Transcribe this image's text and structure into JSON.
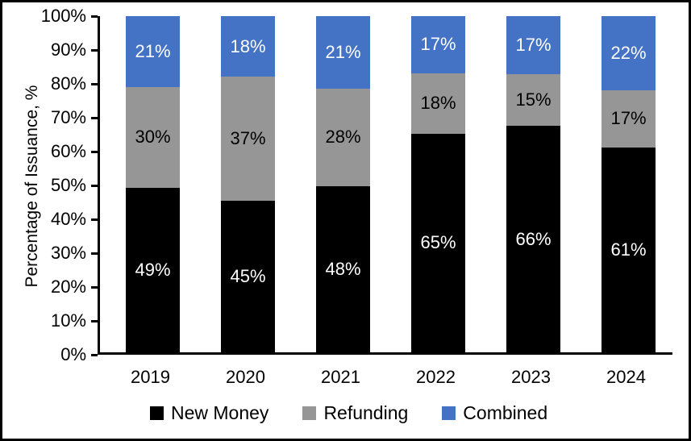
{
  "chart_data": {
    "type": "bar",
    "stacked": true,
    "title": "",
    "xlabel": "",
    "ylabel": "Percentage of Issuance, %",
    "ylim": [
      0,
      100
    ],
    "grid": false,
    "legend_position": "bottom",
    "value_suffix": "%",
    "y_tick_labels": [
      "0%",
      "10%",
      "20%",
      "30%",
      "40%",
      "50%",
      "60%",
      "70%",
      "80%",
      "90%",
      "100%"
    ],
    "categories": [
      "2019",
      "2020",
      "2021",
      "2022",
      "2023",
      "2024"
    ],
    "series": [
      {
        "name": "New Money",
        "color": "#000000",
        "label_color": "#ffffff",
        "values": [
          49,
          45,
          48,
          65,
          66,
          61
        ]
      },
      {
        "name": "Refunding",
        "color": "#969696",
        "label_color": "#000000",
        "values": [
          30,
          37,
          28,
          18,
          15,
          17
        ]
      },
      {
        "name": "Combined",
        "color": "#4472c4",
        "label_color": "#ffffff",
        "values": [
          21,
          18,
          21,
          17,
          17,
          22
        ]
      }
    ]
  }
}
